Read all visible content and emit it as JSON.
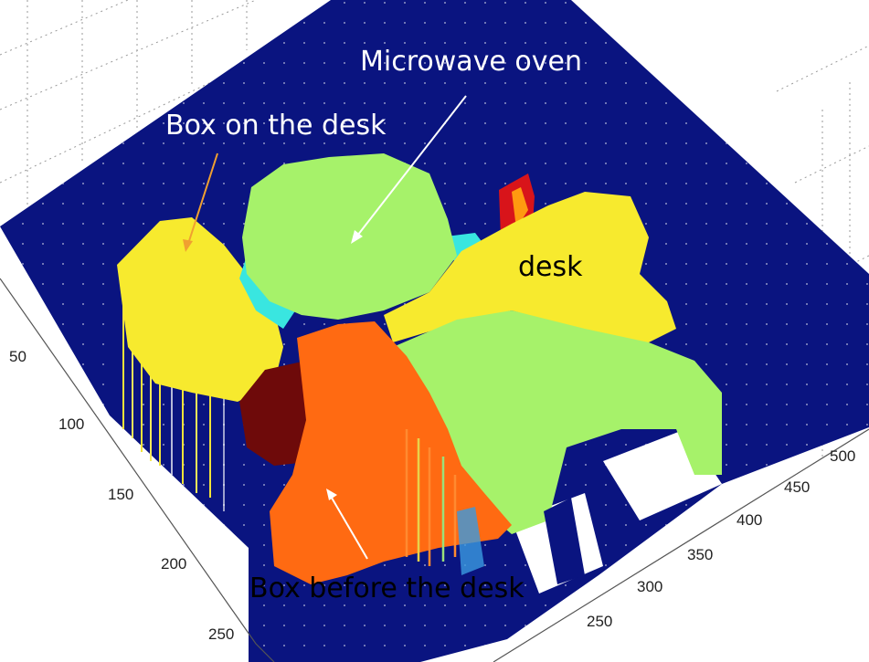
{
  "chart_data": {
    "type": "surface3d",
    "colormap": "jet",
    "grid": true,
    "axes": {
      "y": {
        "ticks": [
          50,
          100,
          150,
          200,
          250
        ],
        "range": [
          0,
          260
        ]
      },
      "x": {
        "ticks": [
          250,
          300,
          350,
          400,
          450,
          500
        ],
        "range": [
          220,
          520
        ]
      }
    },
    "regions": [
      {
        "label": "Box on the desk",
        "color": "#f2e33a"
      },
      {
        "label": "Microwave oven",
        "color": "#a6f26a"
      },
      {
        "label": "desk",
        "color": "#f7ea2e"
      },
      {
        "label": "Box before the desk",
        "color": "#ff6a12"
      }
    ],
    "annotations": [
      {
        "text": "Microwave oven",
        "color": "#ffffff"
      },
      {
        "text": "Box on the desk",
        "color": "#ffffff"
      },
      {
        "text": "desk",
        "color": "#000000"
      },
      {
        "text": "Box before the desk",
        "color": "#000000"
      }
    ],
    "colors": {
      "floor": "#0a1480",
      "yellow": "#f7ea2e",
      "green": "#a6f26a",
      "orange": "#ff6a12",
      "darkred": "#6e0a0a",
      "cyan": "#39e6e0",
      "red": "#d8141a"
    }
  }
}
